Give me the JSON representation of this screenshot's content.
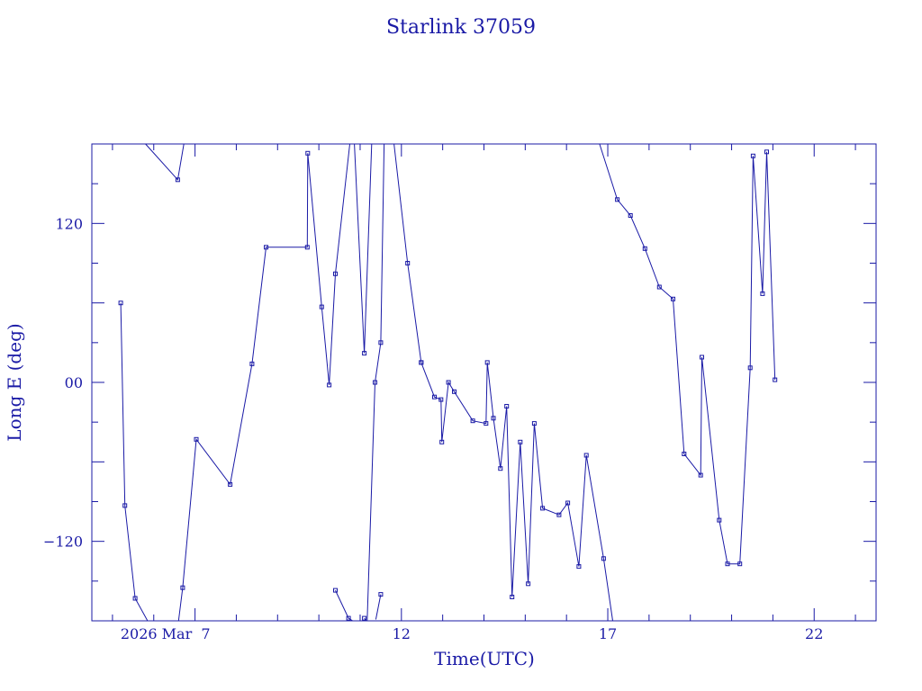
{
  "chart_data": {
    "type": "line",
    "title": "Starlink 37059",
    "xlabel": "Time(UTC)",
    "ylabel": "Long E (deg)",
    "x_unit": "day of March 2026 (UTC)",
    "xlim": [
      4.5,
      23.5
    ],
    "ylim": [
      -180,
      180
    ],
    "grid": false,
    "legend": "none",
    "colors": {
      "line": "#1a1aa6",
      "frame": "#1a1aa6",
      "background": "#ffffff"
    },
    "x_tick_labels": [
      {
        "x": 7,
        "label": "2026 Mar  7"
      },
      {
        "x": 12,
        "label": "12"
      },
      {
        "x": 17,
        "label": "17"
      },
      {
        "x": 22,
        "label": "22"
      }
    ],
    "y_tick_labels": [
      {
        "y": 120,
        "label": "120"
      },
      {
        "y": 0,
        "label": "00"
      },
      {
        "y": -120,
        "label": "−120"
      }
    ],
    "series": [
      {
        "x": [
          5.2,
          5.3,
          5.55,
          5.85,
          6.6,
          6.7,
          7.03,
          7.85,
          8.38,
          8.72,
          9.72,
          9.73,
          10.07,
          10.25,
          10.4,
          10.75
        ],
        "y": [
          60,
          -93,
          -163,
          -180,
          -180,
          -155,
          -43,
          -77,
          14,
          102,
          102,
          173,
          57,
          -2,
          82,
          180
        ],
        "markers": [
          true,
          true,
          true,
          false,
          false,
          true,
          true,
          true,
          true,
          true,
          true,
          true,
          true,
          true,
          true,
          false
        ]
      },
      {
        "x": [
          5.8,
          6.58,
          6.73
        ],
        "y": [
          180,
          153,
          180
        ],
        "markers": [
          false,
          true,
          false
        ]
      },
      {
        "x": [
          10.4,
          10.72,
          10.82
        ],
        "y": [
          -157,
          -178,
          -180
        ],
        "markers": [
          true,
          true,
          false
        ]
      },
      {
        "x": [
          10.86,
          11.1,
          11.28,
          11.4
        ],
        "y": [
          180,
          22,
          180,
          180
        ],
        "markers": [
          false,
          true,
          false,
          false
        ]
      },
      {
        "x": [
          11.1,
          11.15
        ],
        "y": [
          -178,
          -180
        ],
        "markers": [
          true,
          false
        ]
      },
      {
        "x": [
          11.17,
          11.36,
          11.5,
          11.58,
          11.82,
          12.15,
          12.48
        ],
        "y": [
          -180,
          0,
          30,
          180,
          180,
          90,
          15
        ],
        "markers": [
          false,
          true,
          true,
          false,
          false,
          true,
          true
        ]
      },
      {
        "x": [
          11.38,
          11.5
        ],
        "y": [
          -179,
          -160
        ],
        "markers": [
          false,
          true
        ]
      },
      {
        "x": [
          12.48,
          12.8,
          12.96,
          12.98,
          13.14,
          13.28,
          13.73,
          14.05,
          14.08,
          14.23,
          14.4,
          14.55,
          14.68,
          14.88,
          15.07,
          15.22,
          15.42,
          15.82,
          16.03,
          16.3,
          16.48,
          16.9,
          17.12
        ],
        "y": [
          15,
          -11,
          -13,
          -45,
          0,
          -7,
          -29,
          -31,
          15,
          -27,
          -65,
          -18,
          -162,
          -45,
          -152,
          -31,
          -95,
          -100,
          -91,
          -139,
          -55,
          -133,
          -180
        ],
        "markers": [
          true,
          true,
          true,
          true,
          true,
          true,
          true,
          true,
          true,
          true,
          true,
          true,
          true,
          true,
          true,
          true,
          true,
          true,
          true,
          true,
          true,
          true,
          false
        ]
      },
      {
        "x": [
          16.8,
          17.23,
          17.55,
          17.9,
          18.25,
          18.58,
          18.85,
          19.25,
          19.28,
          19.7,
          19.9,
          20.2,
          20.45,
          20.52,
          20.75,
          20.85,
          21.05
        ],
        "y": [
          180,
          138,
          126,
          101,
          72,
          63,
          -54,
          -70,
          19,
          -104,
          -137,
          -137,
          11,
          171,
          67,
          174,
          2
        ],
        "markers": [
          false,
          true,
          true,
          true,
          true,
          true,
          true,
          true,
          true,
          true,
          true,
          true,
          true,
          true,
          true,
          true,
          true
        ]
      }
    ]
  }
}
